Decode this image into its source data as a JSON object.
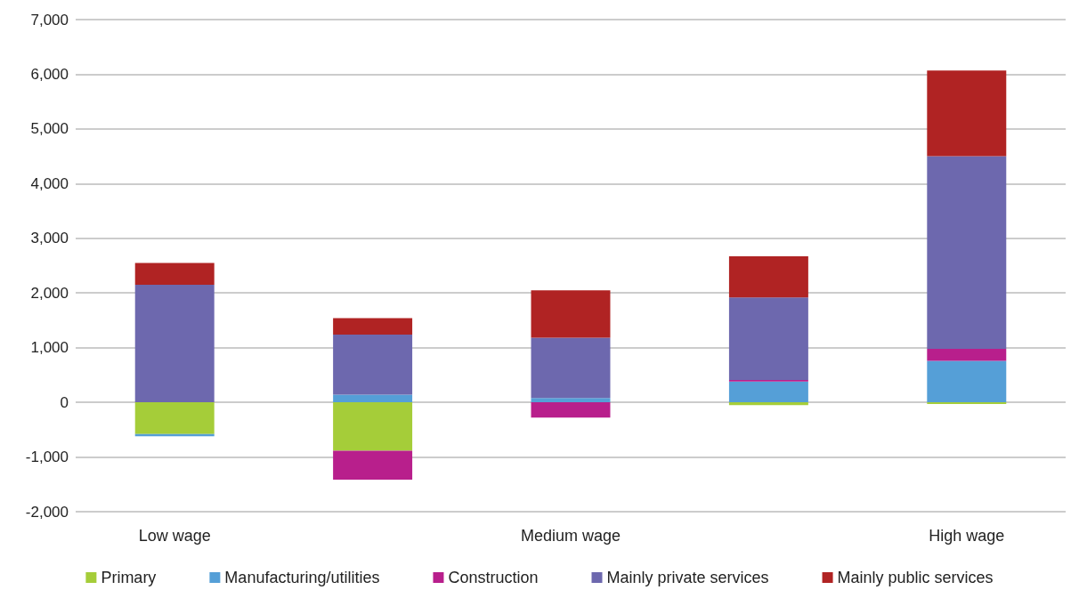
{
  "chart_data": {
    "type": "bar",
    "stacked": true,
    "categories": [
      "Low wage",
      null,
      "Medium wage",
      null,
      "High wage"
    ],
    "series": [
      {
        "name": "Primary",
        "color": "#a5cd39",
        "values": [
          -580,
          -885,
          0,
          -50,
          -30
        ]
      },
      {
        "name": "Manufacturing/utilities",
        "color": "#559fd7",
        "values": [
          -40,
          140,
          80,
          380,
          760
        ]
      },
      {
        "name": "Construction",
        "color": "#b81f8c",
        "values": [
          0,
          -530,
          -280,
          30,
          220
        ]
      },
      {
        "name": "Mainly private services",
        "color": "#6d68ae",
        "values": [
          2150,
          1100,
          1100,
          1510,
          3520
        ]
      },
      {
        "name": "Mainly public services",
        "color": "#b02323",
        "values": [
          400,
          300,
          870,
          750,
          1570
        ]
      }
    ],
    "ylim": [
      -2000,
      7000
    ],
    "yticks": [
      {
        "value": -2000,
        "label": "-2,000"
      },
      {
        "value": -1000,
        "label": "-1,000"
      },
      0,
      {
        "value": 1000,
        "label": "1,000"
      },
      {
        "value": 2000,
        "label": "2,000"
      },
      {
        "value": 3000,
        "label": "3,000"
      },
      {
        "value": 4000,
        "label": "4,000"
      },
      {
        "value": 5000,
        "label": "5,000"
      },
      {
        "value": 6000,
        "label": "6,000"
      },
      {
        "value": 7000,
        "label": "7,000"
      }
    ],
    "grid": "y",
    "legend": "bottom"
  }
}
